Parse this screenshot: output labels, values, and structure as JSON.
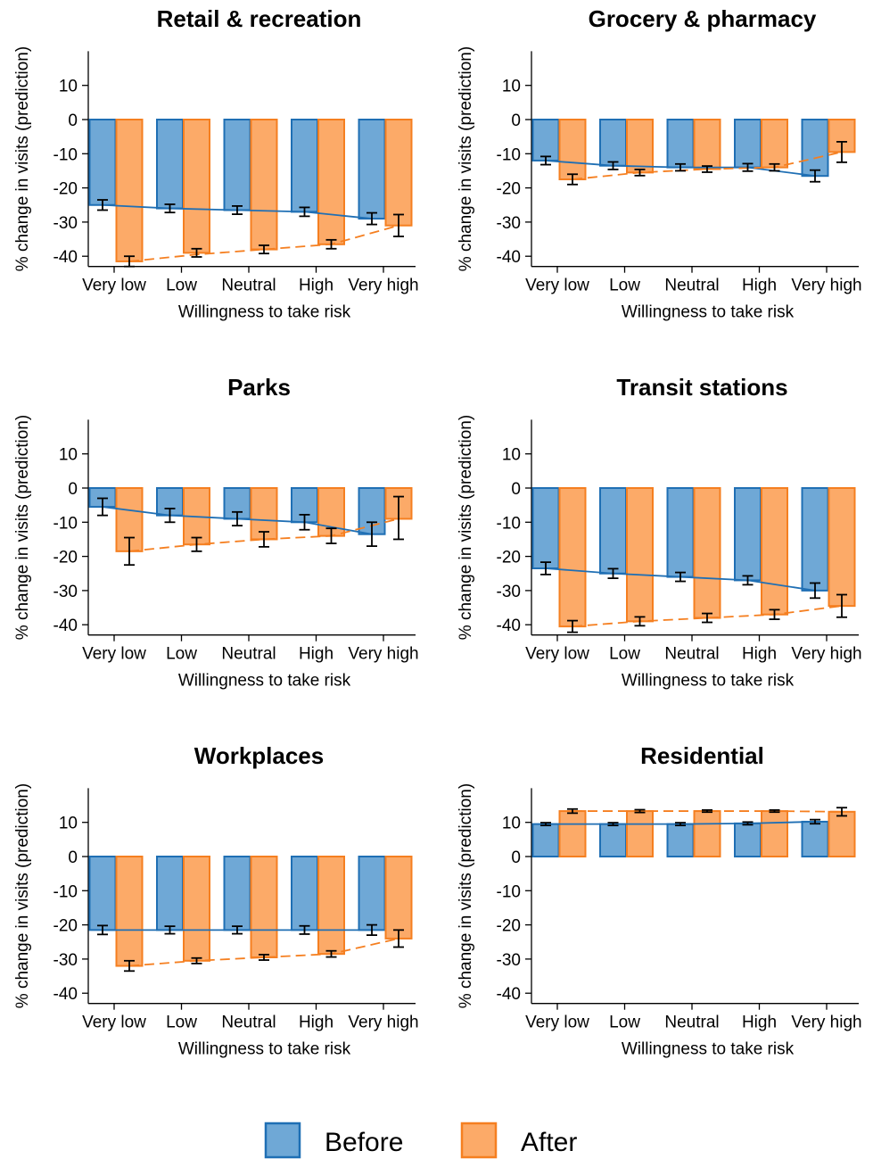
{
  "colors": {
    "before_fill": "#6fa8d6",
    "before_stroke": "#1f6fb4",
    "after_fill": "#fcaa68",
    "after_stroke": "#f57f20",
    "error_bar": "#000000",
    "axis": "#000000"
  },
  "legend": {
    "placement": "bottom-center",
    "items": [
      {
        "label": "Before",
        "color": "#6fa8d6",
        "stroke": "#1f6fb4"
      },
      {
        "label": "After",
        "color": "#fcaa68",
        "stroke": "#f57f20"
      }
    ]
  },
  "chart_data": [
    {
      "type": "bar",
      "title": "Retail & recreation",
      "xlabel": "Willingness to take risk",
      "ylabel": "% change in visits (prediction)",
      "categories": [
        "Very low",
        "Low",
        "Neutral",
        "High",
        "Very high"
      ],
      "ylim": [
        -43,
        20
      ],
      "yticks": [
        10,
        0,
        -10,
        -20,
        -30,
        -40
      ],
      "series": [
        {
          "name": "Before",
          "values": [
            -25,
            -26,
            -26.5,
            -27,
            -29
          ],
          "ci_low": [
            -26.5,
            -27.2,
            -27.7,
            -28.3,
            -30.7
          ],
          "ci_high": [
            -23.5,
            -24.8,
            -25.3,
            -25.7,
            -27.3
          ],
          "fit": "solid",
          "fit_values": [
            -25,
            -26,
            -26.5,
            -27,
            -29
          ]
        },
        {
          "name": "After",
          "values": [
            -41.5,
            -39,
            -38,
            -36.5,
            -31
          ],
          "ci_low": [
            -43,
            -40.2,
            -39.2,
            -37.8,
            -34.2
          ],
          "ci_high": [
            -40,
            -37.8,
            -36.8,
            -35.2,
            -27.8
          ],
          "fit": "dashed",
          "fit_values": [
            -41.5,
            -39.5,
            -38,
            -36.5,
            -31
          ]
        }
      ]
    },
    {
      "type": "bar",
      "title": "Grocery & pharmacy",
      "xlabel": "Willingness to take risk",
      "ylabel": "% change in visits (prediction)",
      "categories": [
        "Very low",
        "Low",
        "Neutral",
        "High",
        "Very high"
      ],
      "ylim": [
        -43,
        20
      ],
      "yticks": [
        10,
        0,
        -10,
        -20,
        -30,
        -40
      ],
      "series": [
        {
          "name": "Before",
          "values": [
            -12,
            -13.5,
            -14,
            -14,
            -16.5
          ],
          "ci_low": [
            -13.2,
            -14.6,
            -15,
            -15.1,
            -18.2
          ],
          "ci_high": [
            -10.8,
            -12.4,
            -13,
            -12.9,
            -14.8
          ],
          "fit": "solid",
          "fit_values": [
            -12,
            -13.5,
            -14,
            -14,
            -16.5
          ]
        },
        {
          "name": "After",
          "values": [
            -17.5,
            -15.5,
            -14.5,
            -14,
            -9.5
          ],
          "ci_low": [
            -19,
            -16.4,
            -15.4,
            -15,
            -12.5
          ],
          "ci_high": [
            -16,
            -14.6,
            -13.6,
            -13,
            -6.5
          ],
          "fit": "dashed",
          "fit_values": [
            -17.5,
            -15.5,
            -14.5,
            -14,
            -9.5
          ]
        }
      ]
    },
    {
      "type": "bar",
      "title": "Parks",
      "xlabel": "Willingness to take risk",
      "ylabel": "% change in visits (prediction)",
      "categories": [
        "Very low",
        "Low",
        "Neutral",
        "High",
        "Very high"
      ],
      "ylim": [
        -43,
        20
      ],
      "yticks": [
        10,
        0,
        -10,
        -20,
        -30,
        -40
      ],
      "series": [
        {
          "name": "Before",
          "values": [
            -5.5,
            -8,
            -9,
            -10,
            -13.5
          ],
          "ci_low": [
            -8,
            -10,
            -11,
            -12.2,
            -17
          ],
          "ci_high": [
            -3,
            -6,
            -7,
            -7.8,
            -10
          ],
          "fit": "solid",
          "fit_values": [
            -5.5,
            -8,
            -9,
            -10,
            -13.5
          ]
        },
        {
          "name": "After",
          "values": [
            -18.5,
            -16.5,
            -15,
            -14,
            -9
          ],
          "ci_low": [
            -22.5,
            -18.5,
            -17.2,
            -16.2,
            -15
          ],
          "ci_high": [
            -14.5,
            -14.5,
            -12.8,
            -11.8,
            -2.5
          ],
          "fit": "dashed",
          "fit_values": [
            -18.5,
            -16.5,
            -15,
            -14,
            -9
          ]
        }
      ]
    },
    {
      "type": "bar",
      "title": "Transit stations",
      "xlabel": "Willingness to take risk",
      "ylabel": "% change in visits (prediction)",
      "categories": [
        "Very low",
        "Low",
        "Neutral",
        "High",
        "Very high"
      ],
      "ylim": [
        -43,
        20
      ],
      "yticks": [
        10,
        0,
        -10,
        -20,
        -30,
        -40
      ],
      "series": [
        {
          "name": "Before",
          "values": [
            -23.5,
            -25,
            -26,
            -27,
            -30
          ],
          "ci_low": [
            -25.3,
            -26.4,
            -27.3,
            -28.3,
            -32.2
          ],
          "ci_high": [
            -21.7,
            -23.6,
            -24.7,
            -25.7,
            -27.8
          ],
          "fit": "solid",
          "fit_values": [
            -23.5,
            -25,
            -26,
            -27,
            -30
          ]
        },
        {
          "name": "After",
          "values": [
            -40.5,
            -39,
            -38,
            -37,
            -34.5
          ],
          "ci_low": [
            -42.2,
            -40.3,
            -39.3,
            -38.4,
            -37.8
          ],
          "ci_high": [
            -38.8,
            -37.7,
            -36.7,
            -35.6,
            -31.2
          ],
          "fit": "dashed",
          "fit_values": [
            -40.5,
            -39,
            -38,
            -37,
            -34.5
          ]
        }
      ]
    },
    {
      "type": "bar",
      "title": "Workplaces",
      "xlabel": "Willingness to take risk",
      "ylabel": "% change in visits (prediction)",
      "categories": [
        "Very low",
        "Low",
        "Neutral",
        "High",
        "Very high"
      ],
      "ylim": [
        -43,
        20
      ],
      "yticks": [
        10,
        0,
        -10,
        -20,
        -30,
        -40
      ],
      "series": [
        {
          "name": "Before",
          "values": [
            -21.5,
            -21.5,
            -21.5,
            -21.5,
            -21.5
          ],
          "ci_low": [
            -22.8,
            -22.6,
            -22.6,
            -22.7,
            -23
          ],
          "ci_high": [
            -20.2,
            -20.4,
            -20.4,
            -20.3,
            -20
          ],
          "fit": "solid",
          "fit_values": [
            -21.5,
            -21.5,
            -21.5,
            -21.5,
            -21.5
          ]
        },
        {
          "name": "After",
          "values": [
            -32,
            -30.5,
            -29.5,
            -28.5,
            -24
          ],
          "ci_low": [
            -33.5,
            -31.3,
            -30.3,
            -29.4,
            -26.5
          ],
          "ci_high": [
            -30.5,
            -29.7,
            -28.7,
            -27.6,
            -21.5
          ],
          "fit": "dashed",
          "fit_values": [
            -32,
            -30.5,
            -29.5,
            -28.5,
            -24
          ]
        }
      ]
    },
    {
      "type": "bar",
      "title": "Residential",
      "xlabel": "Willingness to take risk",
      "ylabel": "% change in visits (prediction)",
      "categories": [
        "Very low",
        "Low",
        "Neutral",
        "High",
        "Very high"
      ],
      "ylim": [
        -43,
        20
      ],
      "yticks": [
        10,
        0,
        -10,
        -20,
        -30,
        -40
      ],
      "series": [
        {
          "name": "Before",
          "values": [
            9.5,
            9.5,
            9.5,
            9.7,
            10.2
          ],
          "ci_low": [
            9.1,
            9.1,
            9.1,
            9.3,
            9.6
          ],
          "ci_high": [
            9.9,
            9.9,
            9.9,
            10.1,
            10.8
          ],
          "fit": "solid",
          "fit_values": [
            9.5,
            9.5,
            9.5,
            9.7,
            10.2
          ]
        },
        {
          "name": "After",
          "values": [
            13.3,
            13.3,
            13.3,
            13.3,
            13.1
          ],
          "ci_low": [
            12.7,
            12.9,
            13,
            13,
            11.9
          ],
          "ci_high": [
            13.9,
            13.7,
            13.6,
            13.6,
            14.3
          ],
          "fit": "dashed",
          "fit_values": [
            13.3,
            13.3,
            13.3,
            13.3,
            13.1
          ]
        }
      ]
    }
  ]
}
